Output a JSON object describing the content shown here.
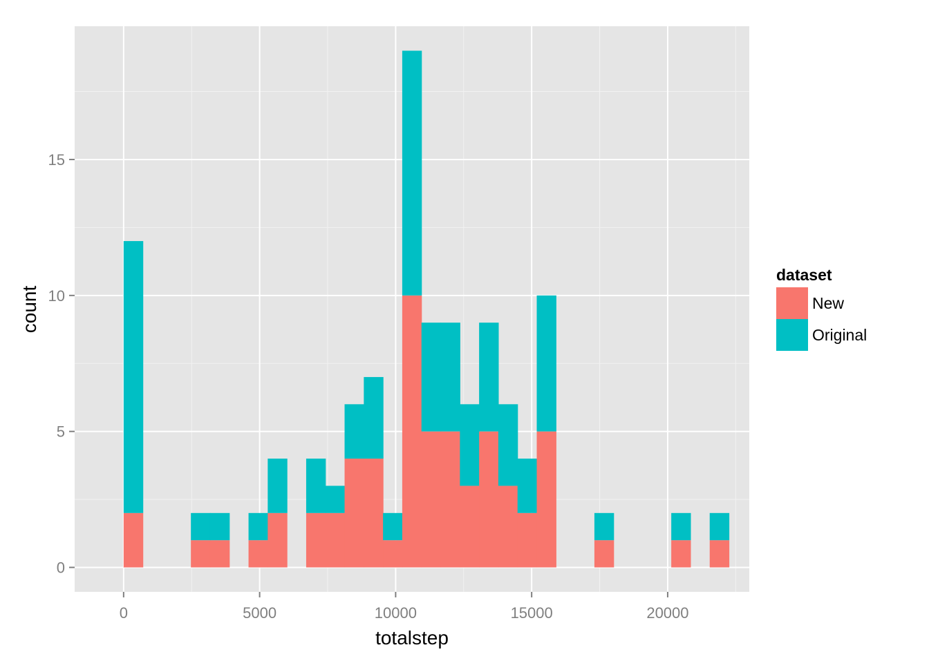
{
  "chart_data": {
    "type": "bar",
    "stacked": true,
    "title": "",
    "xlabel": "totalstep",
    "ylabel": "count",
    "xlim": [
      -1800,
      23000
    ],
    "ylim": [
      -0.9,
      19.9
    ],
    "x_ticks": [
      0,
      5000,
      10000,
      15000,
      20000
    ],
    "x_tick_labels": [
      "0",
      "5000",
      "10000",
      "15000",
      "20000"
    ],
    "y_ticks": [
      0,
      5,
      10,
      15
    ],
    "y_tick_labels": [
      "0",
      "5",
      "10",
      "15"
    ],
    "bin_width": 706,
    "x": [
      353,
      2826,
      3532,
      4945,
      5651,
      7064,
      7770,
      8476,
      9183,
      9889,
      10595,
      11302,
      12008,
      12715,
      13421,
      14127,
      14834,
      15540,
      17659,
      20485,
      21898
    ],
    "series": [
      {
        "name": "New",
        "color": "#F8766D",
        "values": [
          2,
          1,
          1,
          1,
          2,
          2,
          2,
          4,
          4,
          1,
          10,
          5,
          5,
          3,
          5,
          3,
          2,
          5,
          1,
          1,
          1
        ]
      },
      {
        "name": "Original",
        "color": "#00BFC4",
        "values": [
          10,
          1,
          1,
          1,
          2,
          2,
          1,
          2,
          3,
          1,
          9,
          4,
          4,
          3,
          4,
          3,
          2,
          5,
          1,
          1,
          1
        ]
      }
    ],
    "legend": {
      "title": "dataset",
      "position": "right"
    },
    "grid": true
  }
}
